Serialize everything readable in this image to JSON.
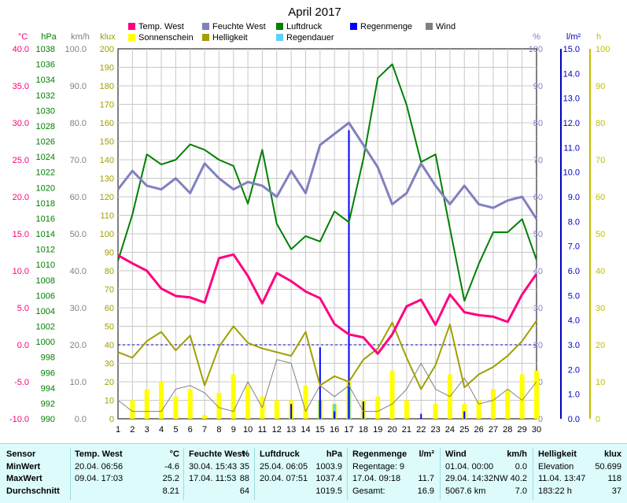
{
  "chart_data": {
    "type": "line",
    "title": "April 2017",
    "days": [
      1,
      2,
      3,
      4,
      5,
      6,
      7,
      8,
      9,
      10,
      11,
      12,
      13,
      14,
      15,
      16,
      17,
      18,
      19,
      20,
      21,
      22,
      23,
      24,
      25,
      26,
      27,
      28,
      29,
      30
    ],
    "legend": [
      {
        "label": "Temp. West",
        "color": "#ff0080"
      },
      {
        "label": "Feuchte West",
        "color": "#8080c0"
      },
      {
        "label": "Luftdruck",
        "color": "#008000"
      },
      {
        "label": "Regenmenge",
        "color": "#0000ff"
      },
      {
        "label": "Wind",
        "color": "#808080"
      },
      {
        "label": "Sonnenschein",
        "color": "#ffff00"
      },
      {
        "label": "Helligkeit",
        "color": "#a0a000"
      },
      {
        "label": "Regendauer",
        "color": "#60d0ff"
      }
    ],
    "axes": [
      {
        "unit": "°C",
        "color": "#ff0080",
        "min": -10,
        "max": 40,
        "ticks": [
          "40.0",
          "35.0",
          "30.0",
          "25.0",
          "20.0",
          "15.0",
          "10.0",
          "5.0",
          "0.0",
          "-5.0",
          "-10.0"
        ]
      },
      {
        "unit": "hPa",
        "color": "#008000",
        "min": 990,
        "max": 1038,
        "ticks": [
          "1038",
          "1036",
          "1034",
          "1032",
          "1030",
          "1028",
          "1026",
          "1024",
          "1022",
          "1020",
          "1018",
          "1016",
          "1014",
          "1012",
          "1010",
          "1008",
          "1006",
          "1004",
          "1002",
          "1000",
          "998",
          "996",
          "994",
          "992",
          "990"
        ]
      },
      {
        "unit": "km/h",
        "color": "#808080",
        "min": 0,
        "max": 100,
        "ticks": [
          "100.0",
          "90.0",
          "80.0",
          "70.0",
          "60.0",
          "50.0",
          "40.0",
          "30.0",
          "20.0",
          "10.0",
          "0.0"
        ]
      },
      {
        "unit": "klux",
        "color": "#a0a000",
        "min": 0,
        "max": 200,
        "ticks": [
          "200",
          "190",
          "180",
          "170",
          "160",
          "150",
          "140",
          "130",
          "120",
          "110",
          "100",
          "90",
          "80",
          "70",
          "60",
          "50",
          "40",
          "30",
          "20",
          "10",
          "0"
        ]
      },
      {
        "unit": "%",
        "color": "#8080c0",
        "min": 0,
        "max": 100,
        "ticks": [
          "100",
          "90",
          "80",
          "70",
          "60",
          "50",
          "40",
          "30",
          "20",
          "10",
          "0"
        ]
      },
      {
        "unit": "l/m²",
        "color": "#0000c0",
        "min": 0,
        "max": 15,
        "ticks": [
          "15.0",
          "14.0",
          "13.0",
          "12.0",
          "11.0",
          "10.0",
          "9.0",
          "8.0",
          "7.0",
          "6.0",
          "5.0",
          "4.0",
          "3.0",
          "2.0",
          "1.0",
          "0.0"
        ]
      },
      {
        "unit": "h",
        "color": "#c0c000",
        "min": 0,
        "max": 100,
        "ticks": [
          "100",
          "90",
          "80",
          "70",
          "60",
          "50",
          "40",
          "30",
          "20",
          "10",
          "0"
        ]
      }
    ],
    "series": [
      {
        "name": "Temp. West",
        "axis": "°C",
        "color": "#ff0080",
        "values": [
          12.1,
          11.0,
          10.0,
          7.6,
          6.6,
          6.4,
          5.7,
          11.7,
          12.2,
          9.3,
          5.6,
          9.7,
          8.6,
          7.2,
          6.3,
          2.8,
          1.4,
          1.0,
          -1.2,
          1.4,
          5.2,
          6.1,
          2.7,
          6.8,
          4.4,
          4.0,
          3.8,
          3.1,
          6.8,
          9.6
        ]
      },
      {
        "name": "Feuchte West",
        "axis": "%",
        "color": "#8080c0",
        "values": [
          62,
          67,
          63,
          62,
          65,
          61,
          69,
          65,
          62,
          64,
          63,
          60,
          67,
          61,
          74,
          77,
          80,
          74,
          68,
          58,
          61,
          69,
          63,
          58,
          63,
          58,
          57,
          59,
          60,
          54
        ]
      },
      {
        "name": "Luftdruck",
        "axis": "hPa",
        "color": "#008000",
        "values": [
          1010.5,
          1016.5,
          1024.3,
          1023.0,
          1023.6,
          1025.6,
          1024.9,
          1023.6,
          1022.8,
          1017.9,
          1024.9,
          1015.3,
          1012.0,
          1013.7,
          1013.0,
          1016.9,
          1015.5,
          1023.7,
          1034.2,
          1036.0,
          1030.7,
          1023.3,
          1024.3,
          1014.7,
          1005.3,
          1010.1,
          1014.2,
          1014.2,
          1015.9,
          1010.6
        ]
      },
      {
        "name": "Helligkeit",
        "axis": "klux",
        "color": "#a0a000",
        "values": [
          36,
          33,
          42,
          47,
          37,
          45,
          18,
          39,
          50,
          41,
          38,
          36,
          34,
          47,
          18,
          23,
          20,
          32,
          38,
          52,
          33,
          16,
          29,
          51,
          17,
          24,
          28,
          34,
          42,
          53
        ]
      },
      {
        "name": "Wind",
        "axis": "km/h",
        "color": "#808080",
        "values": [
          5,
          2,
          2,
          2,
          8,
          9,
          7,
          3,
          2,
          10,
          3,
          16,
          15,
          2,
          9,
          6,
          9,
          2,
          2,
          4,
          8,
          15,
          8,
          6,
          11,
          4,
          5,
          8,
          5,
          10
        ]
      }
    ],
    "sunshine_hours": [
      0,
      5,
      8,
      10,
      6,
      8,
      1,
      7,
      12,
      9,
      6,
      5,
      5,
      9,
      5,
      4,
      10,
      5,
      6,
      13,
      5,
      0,
      4,
      12,
      4,
      5,
      8,
      8,
      12,
      13
    ],
    "rain_l_m2": [
      0,
      0,
      0,
      0,
      0,
      0,
      0,
      0,
      0,
      0,
      0,
      0,
      0.6,
      0,
      2.9,
      0.3,
      11.7,
      0.7,
      0,
      0,
      0,
      0.2,
      0,
      0,
      0.3,
      0,
      0,
      0,
      0,
      0
    ],
    "rain_duration_h": [
      0,
      0,
      0,
      0,
      0,
      0,
      0,
      0,
      0,
      0,
      0,
      0,
      0,
      0,
      5,
      4,
      9,
      0,
      0,
      0,
      0,
      0,
      0,
      0,
      0,
      0,
      0,
      0,
      0,
      0
    ]
  },
  "stats": {
    "rows": [
      "MinWert",
      "MaxWert",
      "Durchschnitt"
    ],
    "sensor_label": "Sensor",
    "blocks": [
      {
        "title": "Temp. West",
        "unit": "°C",
        "dates": [
          "20.04.  06:56",
          "09.04.  17:03",
          ""
        ],
        "values": [
          "-4.6",
          "25.2",
          "8.21"
        ]
      },
      {
        "title": "Feuchte West",
        "unit": "%",
        "dates": [
          "30.04.  15:43",
          "17.04.  11:53",
          ""
        ],
        "values": [
          "35",
          "88",
          "64"
        ]
      },
      {
        "title": "Luftdruck",
        "unit": "hPa",
        "dates": [
          "25.04.  06:05",
          "20.04.  07:51",
          ""
        ],
        "values": [
          "1003.9",
          "1037.4",
          "1019.5"
        ]
      },
      {
        "title": "Regenmenge",
        "unit": "l/m²",
        "dates": [
          "Regentage: 9",
          "17.04.  09:18",
          "Gesamt:"
        ],
        "values": [
          "",
          "11.7",
          "16.9"
        ]
      },
      {
        "title": "Wind",
        "unit": "km/h",
        "dates": [
          "01.04.  00:00",
          "29.04.  14:32NW",
          "5067.6 km"
        ],
        "values": [
          "0.0",
          "40.2",
          "7.0"
        ]
      },
      {
        "title": "Helligkeit",
        "unit": "klux",
        "dates": [
          "Elevation",
          "11.04.  13:47",
          "183:22 h"
        ],
        "values": [
          "50.699",
          "118",
          "37"
        ]
      }
    ]
  }
}
